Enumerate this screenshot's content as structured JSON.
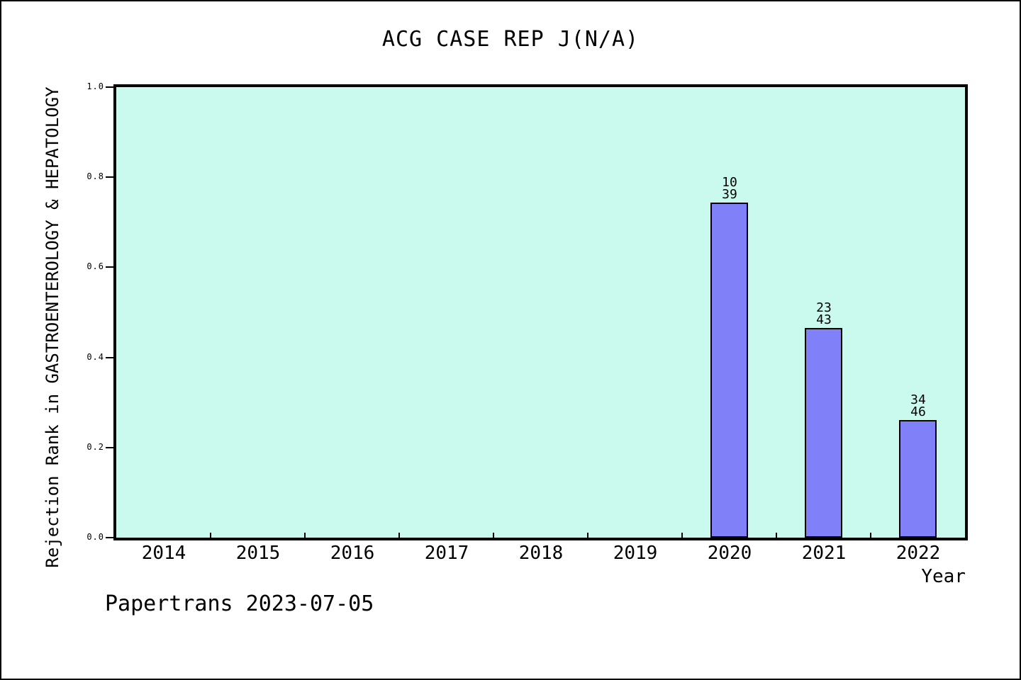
{
  "page": {
    "footer": "Papertrans 2023-07-05"
  },
  "chart_data": {
    "type": "bar",
    "title": "ACG CASE REP J(N/A)",
    "xlabel": "Year",
    "ylabel": "Rejection Rank in GASTROENTEROLOGY & HEPATOLOGY",
    "categories": [
      "2014",
      "2015",
      "2016",
      "2017",
      "2018",
      "2019",
      "2020",
      "2021",
      "2022"
    ],
    "values": [
      null,
      null,
      null,
      null,
      null,
      null,
      0.7436,
      0.4651,
      0.2609
    ],
    "bar_labels": [
      null,
      null,
      null,
      null,
      null,
      null,
      [
        "10",
        "39"
      ],
      [
        "23",
        "43"
      ],
      [
        "34",
        "46"
      ]
    ],
    "y_ticks": [
      0.0,
      0.2,
      0.4,
      0.6,
      0.8,
      1.0
    ],
    "y_tick_labels": [
      "0.0",
      "0.2",
      "0.4",
      "0.6",
      "0.8",
      "1.0"
    ],
    "ylim": [
      0,
      1
    ],
    "grid": false,
    "legend": null,
    "colors": {
      "plot_bg": "#c9faed",
      "bar_fill": "#8080f8",
      "bar_edge": "#000000",
      "text": "#000000",
      "page_bg": "#ffffff"
    }
  }
}
